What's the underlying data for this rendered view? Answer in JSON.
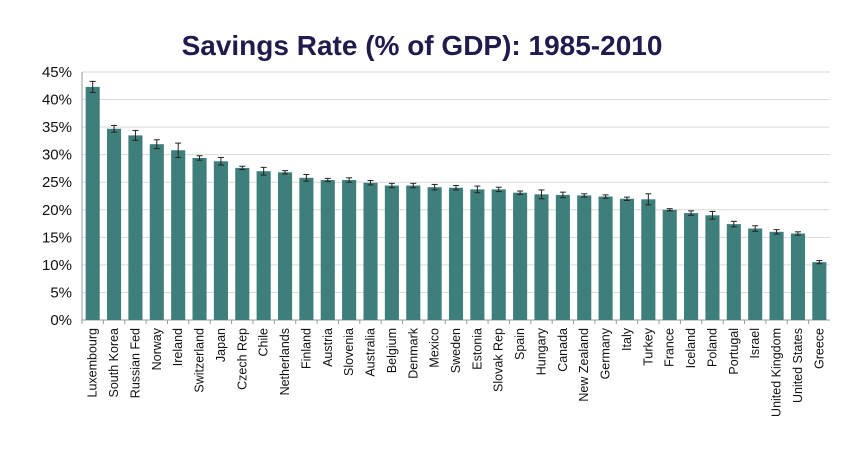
{
  "chart_data": {
    "type": "bar",
    "title": "Savings Rate (% of GDP): 1985-2010",
    "xlabel": "",
    "ylabel": "",
    "ylim": [
      0,
      45
    ],
    "yticks": [
      "0%",
      "5%",
      "10%",
      "15%",
      "20%",
      "25%",
      "30%",
      "35%",
      "40%",
      "45%"
    ],
    "ytick_values": [
      0,
      5,
      10,
      15,
      20,
      25,
      30,
      35,
      40,
      45
    ],
    "grid": true,
    "bar_color": "#3f7f7b",
    "categories": [
      "Luxembourg",
      "South Korea",
      "Russian Fed",
      "Norway",
      "Ireland",
      "Switzerland",
      "Japan",
      "Czech Rep",
      "Chile",
      "Netherlands",
      "Finland",
      "Austria",
      "Slovenia",
      "Australia",
      "Belgium",
      "Denmark",
      "Mexico",
      "Sweden",
      "Estonia",
      "Slovak Rep",
      "Spain",
      "Hungary",
      "Canada",
      "New Zealand",
      "Germany",
      "Italy",
      "Turkey",
      "France",
      "Iceland",
      "Poland",
      "Portugal",
      "Israel",
      "United Kingdom",
      "United States",
      "Greece"
    ],
    "values": [
      42.3,
      34.7,
      33.5,
      31.9,
      30.8,
      29.4,
      28.8,
      27.6,
      27.0,
      26.8,
      25.8,
      25.4,
      25.4,
      24.9,
      24.4,
      24.4,
      24.1,
      24.0,
      23.7,
      23.7,
      23.1,
      22.8,
      22.7,
      22.6,
      22.4,
      22.0,
      21.9,
      20.0,
      19.4,
      19.0,
      17.4,
      16.6,
      16.0,
      15.7,
      10.5
    ],
    "error": [
      1.0,
      0.6,
      0.9,
      0.8,
      1.3,
      0.4,
      0.7,
      0.3,
      0.7,
      0.3,
      0.6,
      0.3,
      0.4,
      0.4,
      0.4,
      0.4,
      0.5,
      0.4,
      0.6,
      0.4,
      0.3,
      0.8,
      0.5,
      0.3,
      0.3,
      0.3,
      1.0,
      0.2,
      0.4,
      0.7,
      0.5,
      0.5,
      0.4,
      0.3,
      0.3
    ]
  }
}
